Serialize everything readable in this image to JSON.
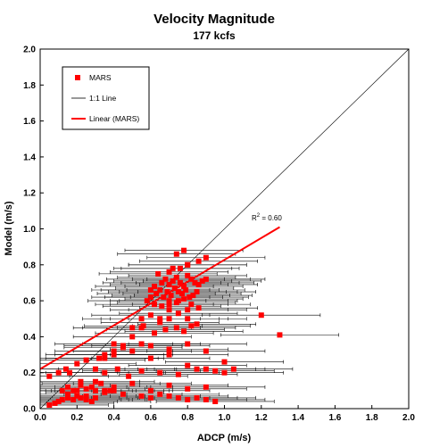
{
  "chart_data": {
    "type": "scatter",
    "title": "Velocity Magnitude",
    "subtitle": "177 kcfs",
    "xlabel": "ADCP (m/s)",
    "ylabel": "Model (m/s)",
    "xlim": [
      0,
      2
    ],
    "ylim": [
      0,
      2
    ],
    "xticks": [
      "0.0",
      "0.2",
      "0.4",
      "0.6",
      "0.8",
      "1.0",
      "1.2",
      "1.4",
      "1.6",
      "1.8",
      "2.0"
    ],
    "yticks": [
      "0.0",
      "0.2",
      "0.4",
      "0.6",
      "0.8",
      "1.0",
      "1.2",
      "1.4",
      "1.6",
      "1.8",
      "2.0"
    ],
    "grid": false,
    "legend_placement": "top-left",
    "legend": [
      {
        "label": "MARS",
        "kind": "marker"
      },
      {
        "label": "1:1 Line",
        "kind": "line"
      },
      {
        "label": "Linear (MARS)",
        "kind": "line"
      }
    ],
    "annotation": {
      "text": "R",
      "sup": "2",
      "value": " = 0.60"
    },
    "colors": {
      "mars": "#ff0000",
      "fit": "#ff0000",
      "one_to_one": "#000000",
      "errorbar": "#000000"
    },
    "one_to_one_line": {
      "x": [
        0,
        2
      ],
      "y": [
        0,
        2
      ]
    },
    "fit_line": {
      "x": [
        0.0,
        1.3
      ],
      "y": [
        0.22,
        1.01
      ]
    },
    "error_bar_half_width": 0.32,
    "series": [
      {
        "name": "MARS",
        "x": [
          0.05,
          0.08,
          0.1,
          0.12,
          0.15,
          0.18,
          0.2,
          0.22,
          0.25,
          0.28,
          0.3,
          0.12,
          0.18,
          0.2,
          0.25,
          0.3,
          0.35,
          0.4,
          0.15,
          0.22,
          0.28,
          0.33,
          0.38,
          0.1,
          0.14,
          0.16,
          0.05,
          0.2,
          0.25,
          0.32,
          0.35,
          0.4,
          0.45,
          0.22,
          0.3,
          0.35,
          0.4,
          0.5,
          0.55,
          0.65,
          0.7,
          0.75,
          0.8,
          0.6,
          0.7,
          0.62,
          0.66,
          0.68,
          0.7,
          0.72,
          0.74,
          0.76,
          0.78,
          0.8,
          0.82,
          0.84,
          0.86,
          0.88,
          0.9,
          0.6,
          0.63,
          0.65,
          0.67,
          0.69,
          0.71,
          0.73,
          0.75,
          0.77,
          0.79,
          0.81,
          0.83,
          0.85,
          0.64,
          0.7,
          0.76,
          0.8,
          0.86,
          0.9,
          0.72,
          0.74,
          0.78,
          0.8,
          0.58,
          0.62,
          0.66,
          0.7,
          0.74,
          0.78,
          0.82,
          0.86,
          0.55,
          0.6,
          0.65,
          0.7,
          0.75,
          0.8,
          0.85,
          0.5,
          0.56,
          0.62,
          0.68,
          0.74,
          0.78,
          0.82,
          0.6,
          0.7,
          0.8,
          0.9,
          0.4,
          0.45,
          0.5,
          0.55,
          0.6,
          0.7,
          0.8,
          0.9,
          1.0,
          1.05,
          1.2,
          1.3,
          0.35,
          0.42,
          0.48,
          0.55,
          0.65,
          0.75,
          0.85,
          0.95,
          1.0,
          0.3,
          0.4,
          0.5,
          0.6,
          0.7,
          0.8,
          0.9,
          0.15,
          0.25,
          0.35,
          0.45,
          0.55,
          0.6,
          0.65,
          0.7,
          0.75,
          0.8,
          0.85,
          0.9,
          0.95
        ],
        "y": [
          0.02,
          0.03,
          0.04,
          0.05,
          0.06,
          0.05,
          0.07,
          0.06,
          0.05,
          0.04,
          0.06,
          0.1,
          0.1,
          0.1,
          0.11,
          0.1,
          0.1,
          0.1,
          0.12,
          0.13,
          0.12,
          0.14,
          0.1,
          0.2,
          0.22,
          0.2,
          0.18,
          0.25,
          0.27,
          0.28,
          0.3,
          0.32,
          0.35,
          0.15,
          0.22,
          0.28,
          0.36,
          0.4,
          0.45,
          0.5,
          0.55,
          0.6,
          0.55,
          0.62,
          0.58,
          0.68,
          0.7,
          0.72,
          0.69,
          0.71,
          0.73,
          0.7,
          0.68,
          0.74,
          0.72,
          0.7,
          0.69,
          0.71,
          0.72,
          0.66,
          0.64,
          0.66,
          0.62,
          0.65,
          0.63,
          0.67,
          0.65,
          0.64,
          0.66,
          0.62,
          0.63,
          0.65,
          0.75,
          0.76,
          0.78,
          0.8,
          0.82,
          0.84,
          0.78,
          0.86,
          0.88,
          0.8,
          0.6,
          0.58,
          0.57,
          0.6,
          0.59,
          0.61,
          0.58,
          0.56,
          0.5,
          0.52,
          0.48,
          0.5,
          0.53,
          0.5,
          0.47,
          0.45,
          0.46,
          0.42,
          0.44,
          0.45,
          0.43,
          0.46,
          0.35,
          0.33,
          0.36,
          0.32,
          0.3,
          0.34,
          0.32,
          0.36,
          0.28,
          0.3,
          0.24,
          0.22,
          0.26,
          0.22,
          0.52,
          0.41,
          0.2,
          0.22,
          0.18,
          0.21,
          0.2,
          0.19,
          0.22,
          0.21,
          0.2,
          0.15,
          0.12,
          0.14,
          0.1,
          0.13,
          0.11,
          0.12,
          0.08,
          0.07,
          0.09,
          0.08,
          0.07,
          0.06,
          0.08,
          0.07,
          0.06,
          0.05,
          0.06,
          0.05,
          0.04
        ]
      }
    ]
  }
}
